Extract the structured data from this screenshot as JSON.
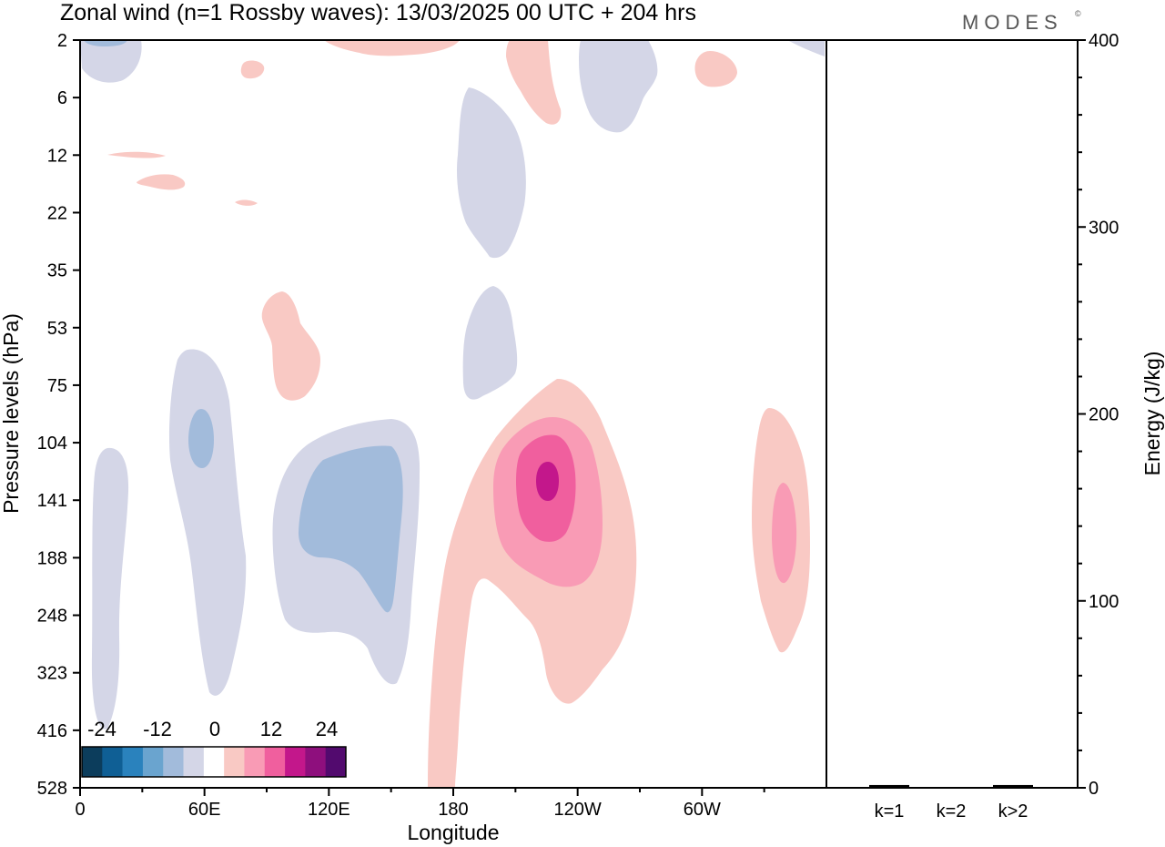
{
  "title": "Zonal wind (n=1 Rossby waves):  13/03/2025  00 UTC  + 204 hrs",
  "logo": "MODES",
  "logo_mark": "©",
  "colors": {
    "blue_light": "#d4d6e7",
    "blue_mid": "#a2bbdb",
    "pink_light": "#f9c9c4",
    "pink_mid": "#f99bb5",
    "pink_strong": "#f05f9e",
    "magenta": "#c3178b"
  },
  "chart_data": [
    {
      "type": "heatmap",
      "name": "zonal-wind-cross-section",
      "xlabel": "Longitude",
      "ylabel": "Pressure levels (hPa)",
      "x_ticks": [
        "0",
        "60E",
        "120E",
        "180",
        "120W",
        "60W"
      ],
      "y_ticks": [
        "2",
        "6",
        "12",
        "22",
        "35",
        "53",
        "75",
        "104",
        "141",
        "188",
        "248",
        "323",
        "416",
        "528"
      ],
      "colorbar": {
        "ticks": [
          "-24",
          "-12",
          "0",
          "12",
          "24"
        ],
        "colors": [
          "#0c3d5c",
          "#0f5f95",
          "#2a82bd",
          "#6aa4cf",
          "#a2bbdb",
          "#d4d6e7",
          "#ffffff",
          "#f9c9c4",
          "#f99bb5",
          "#f05f9e",
          "#c3178b",
          "#8e0f7d",
          "#520a6e"
        ]
      },
      "regions": [
        {
          "sign": "negative",
          "level": 1,
          "lon": [
            0,
            30
          ],
          "p": [
            2,
            6
          ]
        },
        {
          "sign": "negative",
          "level": 1,
          "lon": [
            5,
            25
          ],
          "p": [
            104,
            416
          ]
        },
        {
          "sign": "negative",
          "level": 1,
          "lon": [
            42,
            80
          ],
          "p": [
            75,
            323
          ]
        },
        {
          "sign": "negative",
          "level": 2,
          "lon": [
            55,
            63
          ],
          "p": [
            104,
            141
          ]
        },
        {
          "sign": "negative",
          "level": 1,
          "lon": [
            93,
            163
          ],
          "p": [
            104,
            323
          ]
        },
        {
          "sign": "negative",
          "level": 2,
          "lon": [
            105,
            155
          ],
          "p": [
            104,
            248
          ]
        },
        {
          "sign": "negative",
          "level": 1,
          "lon": [
            182,
            212
          ],
          "p": [
            6,
            35
          ]
        },
        {
          "sign": "negative",
          "level": 1,
          "lon": [
            185,
            212
          ],
          "p": [
            35,
            75
          ]
        },
        {
          "sign": "negative",
          "level": 1,
          "lon": [
            240,
            278
          ],
          "p": [
            2,
            6
          ]
        },
        {
          "sign": "positive",
          "level": 1,
          "lon": [
            165,
            270
          ],
          "p": [
            75,
            528
          ]
        },
        {
          "sign": "positive",
          "level": 2,
          "lon": [
            200,
            250
          ],
          "p": [
            104,
            188
          ]
        },
        {
          "sign": "positive",
          "level": 3,
          "lon": [
            208,
            240
          ],
          "p": [
            104,
            188
          ]
        },
        {
          "sign": "positive",
          "level": 4,
          "lon": [
            218,
            228
          ],
          "p": [
            104,
            141
          ]
        },
        {
          "sign": "positive",
          "level": 1,
          "lon": [
            325,
            350
          ],
          "p": [
            104,
            323
          ]
        },
        {
          "sign": "positive",
          "level": 2,
          "lon": [
            334,
            345
          ],
          "p": [
            141,
            188
          ]
        },
        {
          "sign": "positive",
          "level": 1,
          "lon": [
            88,
            115
          ],
          "p": [
            35,
            75
          ]
        },
        {
          "sign": "positive",
          "level": 1,
          "lon": [
            205,
            232
          ],
          "p": [
            2,
            6
          ]
        },
        {
          "sign": "positive",
          "level": 1,
          "lon": [
            290,
            310
          ],
          "p": [
            2,
            6
          ]
        }
      ]
    },
    {
      "type": "bar",
      "name": "wave-energy",
      "ylabel": "Energy (J/kg)",
      "categories": [
        "k=1",
        "k=2",
        "k>2"
      ],
      "values": [
        1,
        0,
        1
      ],
      "ylim": [
        0,
        400
      ],
      "y_ticks": [
        "0",
        "100",
        "200",
        "300",
        "400"
      ]
    }
  ]
}
